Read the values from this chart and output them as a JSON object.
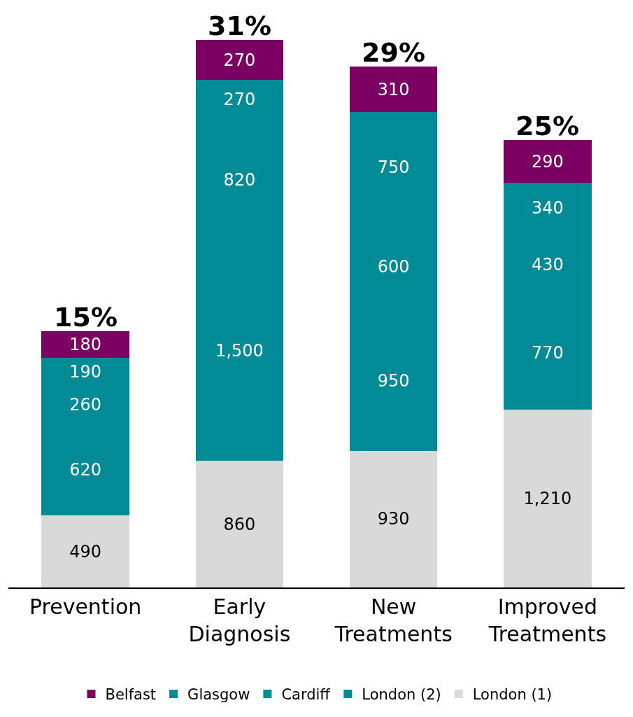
{
  "chart_data": {
    "type": "bar",
    "stacked": true,
    "categories": [
      "Prevention",
      "Early Diagnosis",
      "New Treatments",
      "Improved Treatments"
    ],
    "series": [
      {
        "name": "London (1)",
        "color": "#d9d9d9",
        "values": [
          490,
          860,
          930,
          1210
        ],
        "value_labels": [
          "490",
          "860",
          "930",
          "1,210"
        ]
      },
      {
        "name": "London (2)",
        "color": "#008b96",
        "values": [
          620,
          1500,
          950,
          770
        ],
        "value_labels": [
          "620",
          "1,500",
          "950",
          "770"
        ]
      },
      {
        "name": "Cardiff",
        "color": "#008b96",
        "values": [
          260,
          820,
          600,
          430
        ],
        "value_labels": [
          "260",
          "820",
          "600",
          "430"
        ]
      },
      {
        "name": "Glasgow",
        "color": "#008b96",
        "values": [
          190,
          270,
          750,
          340
        ],
        "value_labels": [
          "190",
          "270",
          "750",
          "340"
        ]
      },
      {
        "name": "Belfast",
        "color": "#7b0062",
        "values": [
          180,
          270,
          310,
          290
        ],
        "value_labels": [
          "180",
          "270",
          "310",
          "290"
        ]
      }
    ],
    "annotations": [
      {
        "text": "15%",
        "x": "Prevention",
        "y": 1740
      },
      {
        "text": "31%",
        "x": "Early Diagnosis",
        "y": 3720
      },
      {
        "text": "29%",
        "x": "New Treatments",
        "y": 3540
      },
      {
        "text": "25%",
        "x": "Improved Treatments",
        "y": 3040
      }
    ],
    "legend": "bottom"
  }
}
